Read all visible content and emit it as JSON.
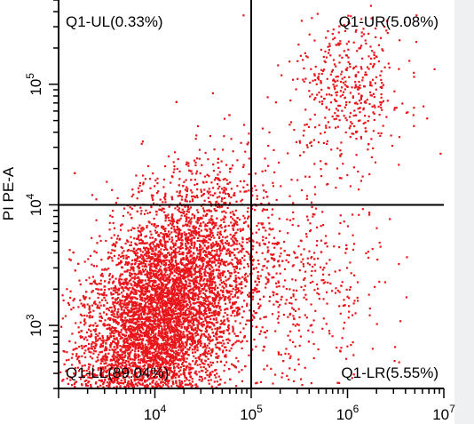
{
  "chart_data": {
    "type": "scatter",
    "ylabel": "PI PE-A",
    "xlim": [
      1000,
      10000000
    ],
    "ylim": [
      300,
      500000
    ],
    "x_scale": "log",
    "y_scale": "log",
    "x_ticks": [
      {
        "value": 10000,
        "base": "10",
        "exp": "4"
      },
      {
        "value": 100000,
        "base": "10",
        "exp": "5"
      },
      {
        "value": 1000000,
        "base": "10",
        "exp": "6"
      },
      {
        "value": 10000000,
        "base": "10",
        "exp": "7"
      }
    ],
    "y_ticks": [
      {
        "value": 1000,
        "base": "10",
        "exp": "3"
      },
      {
        "value": 10000,
        "base": "10",
        "exp": "4"
      },
      {
        "value": 100000,
        "base": "10",
        "exp": "5"
      }
    ],
    "gate": {
      "x": 100000,
      "y": 10000
    },
    "quadrants": [
      {
        "name": "Q1-UL",
        "percent": "0.33%",
        "label": "Q1-UL(0.33%)"
      },
      {
        "name": "Q1-UR",
        "percent": "5.08%",
        "label": "Q1-UR(5.08%)"
      },
      {
        "name": "Q1-LL",
        "percent": "89.04%",
        "label": "Q1-LL(89.04%)"
      },
      {
        "name": "Q1-LR",
        "percent": "5.55%",
        "label": "Q1-LR(5.55%)"
      }
    ],
    "point_color": "#e8161b",
    "populations": [
      {
        "name": "main",
        "center_log": [
          4.05,
          3.05
        ],
        "spread_log": [
          0.45,
          0.48
        ],
        "fraction": 0.89
      },
      {
        "name": "upper-right",
        "center_log": [
          6.0,
          4.95
        ],
        "spread_log": [
          0.3,
          0.3
        ],
        "fraction": 0.05
      },
      {
        "name": "lower-right",
        "center_log": [
          5.45,
          3.35
        ],
        "spread_log": [
          0.45,
          0.45
        ],
        "fraction": 0.055
      }
    ],
    "grid": false
  }
}
